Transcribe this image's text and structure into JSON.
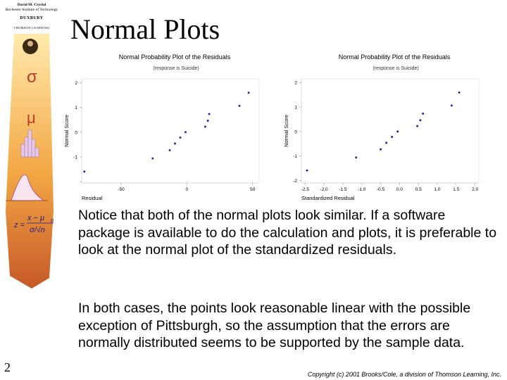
{
  "slide": {
    "title": "Normal Plots",
    "page_number": "2",
    "copyright": "Copyright (c) 2001 Brooks/Cole, a division of Thomson Learning, Inc.",
    "paragraphs": [
      "Notice that both of the normal plots look similar. If a software package is available to do the calculation and plots, it is preferable to look at the normal plot of the standardized residuals.",
      "In both cases, the points look reasonable linear with the possible exception of Pittsburgh, so the assumption that the errors are normally distributed seems to be supported by the sample data."
    ]
  },
  "sidebar": {
    "brand_line1": "David M. Cryslal",
    "brand_line2": "Rochester Institute of Technology",
    "publisher": "DUXBURY",
    "publisher_sub": "THOMSON LEARNING",
    "sigma_symbol": "σ",
    "mu_symbol": "μ",
    "formula_lhs": "z =",
    "formula_num": "x − μ",
    "formula_num_sub": "0",
    "formula_den": "σ/√n",
    "colors": {
      "gradient_top": "#ffe9a8",
      "gradient_mid": "#f2a23a",
      "gradient_bottom": "#c4501c",
      "symbol": "#c0392b"
    }
  },
  "chart_data": [
    {
      "type": "scatter",
      "title": "Normal Probability Plot of the Residuals",
      "subtitle": "(response is Suicide)",
      "xlabel": "Residual",
      "ylabel": "Normal Score",
      "xlim": [
        -80,
        55
      ],
      "ylim": [
        -2.05,
        2.15
      ],
      "xticks": [
        -50,
        0,
        50
      ],
      "yticks": [
        2,
        1,
        0,
        -1,
        -2
      ],
      "yticklabels": [
        "2",
        "1",
        "0",
        "-1",
        ""
      ],
      "grid": false,
      "point_color": "#1a1aa6",
      "x": [
        -78,
        -26,
        -13,
        -9,
        -5,
        -1,
        14,
        16,
        17,
        40,
        47
      ],
      "y": [
        -1.59,
        -1.06,
        -0.73,
        -0.46,
        -0.22,
        0,
        0.22,
        0.46,
        0.73,
        1.06,
        1.59
      ]
    },
    {
      "type": "scatter",
      "title": "Normal Probability Plot of the Residuals",
      "subtitle": "(response is Suicide)",
      "xlabel": "Standardized Residual",
      "ylabel": "Normal Score",
      "xlim": [
        -2.6,
        2.1
      ],
      "ylim": [
        -2.1,
        2.15
      ],
      "xticks": [
        -2.5,
        -2.0,
        -1.5,
        -1.0,
        -0.5,
        0.0,
        0.5,
        1.0,
        1.5,
        2.0
      ],
      "xticklabels": [
        "-2.5",
        "-2.0",
        "-1.5",
        "-1.0",
        "-0.5",
        "0.0",
        "0.5",
        "1.0",
        "1.5",
        "2.0"
      ],
      "yticks": [
        2,
        1,
        0,
        -1,
        -2
      ],
      "yticklabels": [
        "2",
        "1",
        "0",
        "-1",
        "-2"
      ],
      "grid": false,
      "point_color": "#1a1aa6",
      "x": [
        -2.45,
        -1.15,
        -0.5,
        -0.35,
        -0.2,
        -0.05,
        0.47,
        0.55,
        0.62,
        1.38,
        1.58
      ],
      "y": [
        -1.59,
        -1.06,
        -0.73,
        -0.46,
        -0.22,
        0,
        0.22,
        0.46,
        0.73,
        1.06,
        1.59
      ]
    }
  ]
}
